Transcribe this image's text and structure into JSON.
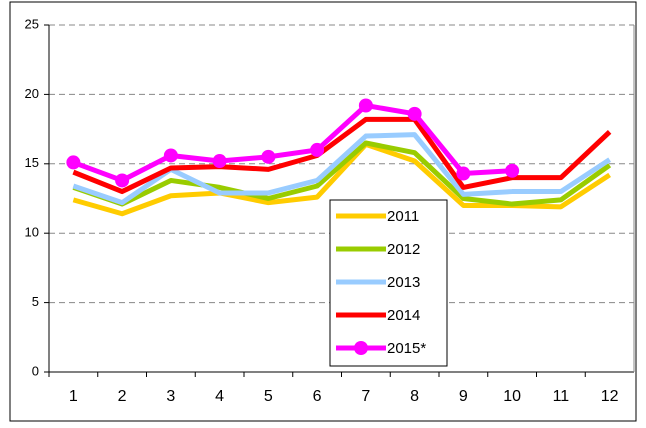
{
  "chart_data": {
    "type": "line",
    "categories": [
      "1",
      "2",
      "3",
      "4",
      "5",
      "6",
      "7",
      "8",
      "9",
      "10",
      "11",
      "12"
    ],
    "series": [
      {
        "name": "2011",
        "color": "#ffcc00",
        "values": [
          12.4,
          11.4,
          12.7,
          12.9,
          12.2,
          12.6,
          16.4,
          15.2,
          12.0,
          12.0,
          11.9,
          14.2
        ]
      },
      {
        "name": "2012",
        "color": "#99cc00",
        "values": [
          13.3,
          12.1,
          13.8,
          13.3,
          12.5,
          13.4,
          16.5,
          15.8,
          12.5,
          12.1,
          12.4,
          14.9
        ]
      },
      {
        "name": "2013",
        "color": "#99ccff",
        "values": [
          13.4,
          12.2,
          14.6,
          12.9,
          12.9,
          13.8,
          17.0,
          17.1,
          12.8,
          13.0,
          13.0,
          15.3
        ]
      },
      {
        "name": "2014",
        "color": "#ff0000",
        "values": [
          14.4,
          13.0,
          14.7,
          14.8,
          14.6,
          15.6,
          18.2,
          18.2,
          13.3,
          14.0,
          14.0,
          17.3
        ]
      },
      {
        "name": "2015*",
        "color": "#ff00ff",
        "markers": true,
        "values": [
          15.1,
          13.8,
          15.6,
          15.2,
          15.5,
          16.0,
          19.2,
          18.6,
          14.3,
          14.5,
          null,
          null
        ]
      }
    ],
    "ylim": [
      0,
      25
    ],
    "yticks": [
      0,
      5,
      10,
      15,
      20,
      25
    ],
    "grid": true
  }
}
